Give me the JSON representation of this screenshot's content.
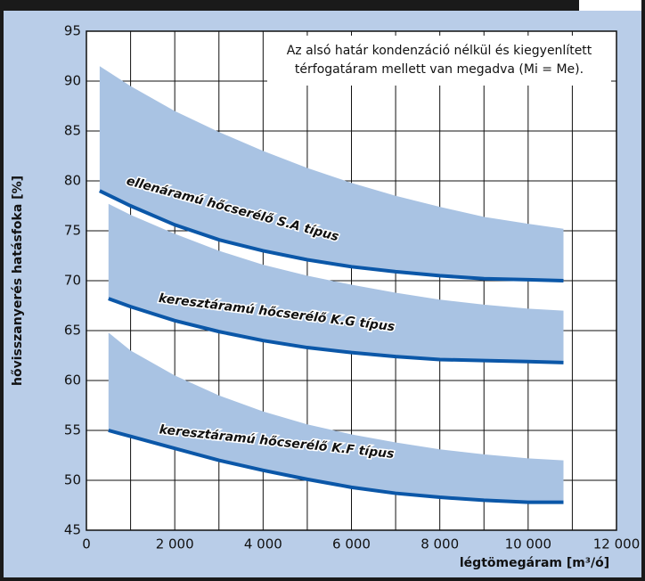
{
  "chart_data": {
    "type": "band-line",
    "annotation": [
      "Az alsó határ kondenzáció nélkül és kiegyenlített",
      "térfogatáram mellett van megadva (Mi = Me)."
    ],
    "xlabel": "légtömegáram [m³/ó]",
    "ylabel": "hővisszanyerés hatásfoka [%]",
    "xlim": [
      0,
      12000
    ],
    "ylim": [
      45,
      95
    ],
    "xticks": [
      0,
      {
        "value": 2000,
        "label": "2 000"
      },
      {
        "value": 4000,
        "label": "4 000"
      },
      {
        "value": 6000,
        "label": "6 000"
      },
      {
        "value": 8000,
        "label": "8 000"
      },
      {
        "value": 10000,
        "label": "10 000"
      },
      {
        "value": 12000,
        "label": "12 000"
      }
    ],
    "xminor": [
      1000,
      3000,
      5000,
      7000,
      9000,
      11000
    ],
    "yticks": [
      45,
      50,
      55,
      60,
      65,
      70,
      75,
      80,
      85,
      90,
      95
    ],
    "grid": true,
    "band_color": "#a9c3e3",
    "line_color": "#0b57a8",
    "series": [
      {
        "name": "ellenáramú hőcserélő S.A típus",
        "x": [
          300,
          1000,
          2000,
          3000,
          4000,
          5000,
          6000,
          7000,
          8000,
          9000,
          10000,
          10800
        ],
        "values": [
          79,
          77.5,
          75.6,
          74.1,
          73,
          72.1,
          71.4,
          70.9,
          70.5,
          70.2,
          70.1,
          70
        ],
        "upper": [
          91.5,
          89.5,
          87,
          84.9,
          83,
          81.3,
          79.8,
          78.5,
          77.4,
          76.4,
          75.7,
          75.2
        ]
      },
      {
        "name": "keresztáramú hőcserélő K.G típus",
        "x": [
          500,
          1000,
          2000,
          3000,
          4000,
          5000,
          6000,
          7000,
          8000,
          9000,
          10000,
          10800
        ],
        "values": [
          68.2,
          67.4,
          66,
          64.9,
          64,
          63.3,
          62.8,
          62.4,
          62.1,
          62,
          61.9,
          61.8
        ],
        "upper": [
          77.7,
          76.6,
          74.7,
          73,
          71.6,
          70.5,
          69.6,
          68.8,
          68.1,
          67.6,
          67.2,
          67
        ]
      },
      {
        "name": "keresztáramú hőcserélő K.F típus",
        "x": [
          500,
          1000,
          2000,
          3000,
          4000,
          5000,
          6000,
          7000,
          8000,
          9000,
          10000,
          10800
        ],
        "values": [
          55,
          54.4,
          53.2,
          52,
          51,
          50.1,
          49.3,
          48.7,
          48.3,
          48,
          47.8,
          47.8
        ],
        "upper": [
          64.8,
          63,
          60.5,
          58.5,
          56.9,
          55.6,
          54.6,
          53.8,
          53.1,
          52.6,
          52.2,
          52
        ]
      }
    ]
  }
}
